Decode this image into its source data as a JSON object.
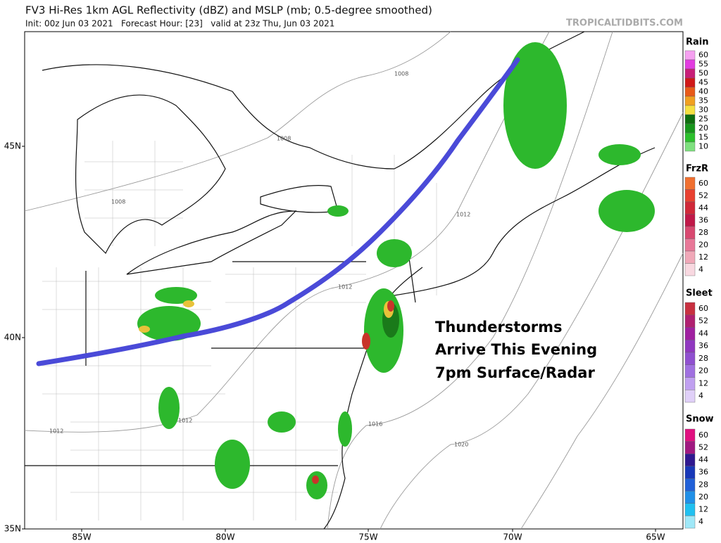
{
  "header": {
    "title": "FV3 Hi-Res 1km AGL Reflectivity (dBZ) and MSLP (mb; 0.5-degree smoothed)",
    "subtitle": "Init: 00z Jun 03 2021   Forecast Hour: [23]   valid at 23z Thu, Jun 03 2021",
    "source": "TROPICALTIDBITS.COM"
  },
  "map": {
    "lat_labels": [
      "45N",
      "40N",
      "35N"
    ],
    "lon_labels": [
      "85W",
      "80W",
      "75W",
      "70W",
      "65W"
    ],
    "isobar_labels": [
      "1008",
      "1008",
      "1008",
      "1012",
      "1012",
      "1012",
      "1012",
      "1016",
      "1020"
    ],
    "annotation": [
      "Thunderstorms",
      "Arrive This Evening",
      "7pm Surface/Radar"
    ]
  },
  "legend": [
    {
      "title": "Rain",
      "labels": [
        "60",
        "55",
        "50",
        "45",
        "40",
        "35",
        "30",
        "25",
        "20",
        "15",
        "10"
      ]
    },
    {
      "title": "FrzR",
      "labels": [
        "60",
        "52",
        "44",
        "36",
        "28",
        "20",
        "12",
        "4"
      ]
    },
    {
      "title": "Sleet",
      "labels": [
        "60",
        "52",
        "44",
        "36",
        "28",
        "20",
        "12",
        "4"
      ]
    },
    {
      "title": "Snow",
      "labels": [
        "60",
        "52",
        "44",
        "36",
        "28",
        "20",
        "12",
        "4"
      ]
    }
  ]
}
